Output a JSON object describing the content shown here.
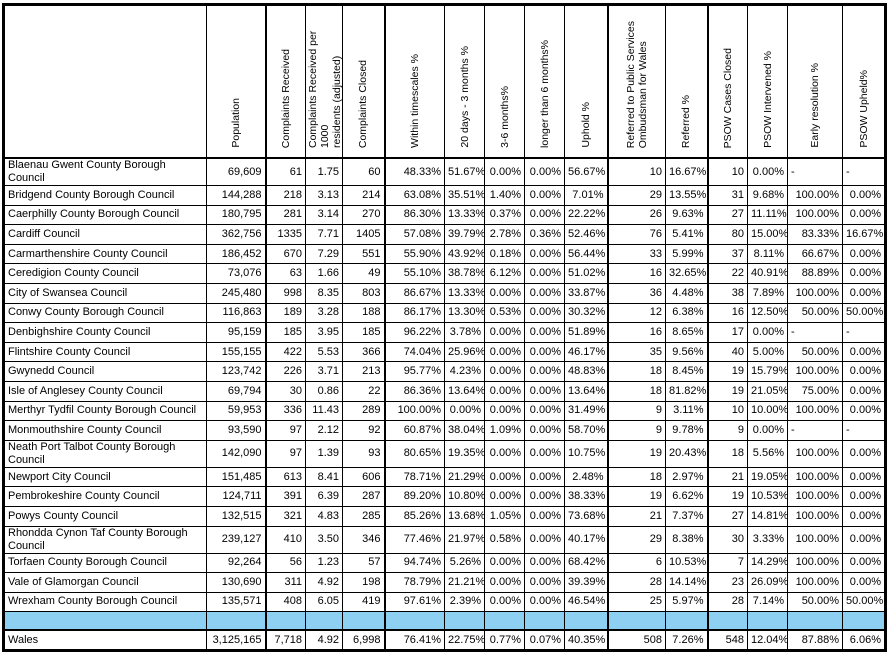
{
  "table": {
    "separator_row_color": "#8ED0F2",
    "columns": [
      {
        "label": ""
      },
      {
        "label": "Population"
      },
      {
        "label": "Complaints Received"
      },
      {
        "label": "Complaints Received per 1000\nresidents (adjusted)"
      },
      {
        "label": "Complaints Closed"
      },
      {
        "label": "Within timescales %"
      },
      {
        "label": "20 days - 3 months %"
      },
      {
        "label": "3-6 months%"
      },
      {
        "label": "longer than 6 months%"
      },
      {
        "label": "Uphold %"
      },
      {
        "label": "Referred to Public Services\nOmbudsman for Wales"
      },
      {
        "label": "Referred %"
      },
      {
        "label": "PSOW Cases Closed"
      },
      {
        "label": "PSOW Intervened %"
      },
      {
        "label": "Early resolution %"
      },
      {
        "label": "PSOW Upheld%"
      }
    ],
    "rows": [
      {
        "name": "Blaenau Gwent County Borough Council",
        "values": [
          "69,609",
          "61",
          "1.75",
          "60",
          "48.33%",
          "51.67%",
          "0.00%",
          "0.00%",
          "56.67%",
          "10",
          "16.67%",
          "10",
          "0.00%",
          "-",
          "-"
        ]
      },
      {
        "name": "Bridgend County Borough Council",
        "values": [
          "144,288",
          "218",
          "3.13",
          "214",
          "63.08%",
          "35.51%",
          "1.40%",
          "0.00%",
          "7.01%",
          "29",
          "13.55%",
          "31",
          "9.68%",
          "100.00%",
          "0.00%"
        ]
      },
      {
        "name": "Caerphilly County Borough Council",
        "values": [
          "180,795",
          "281",
          "3.14",
          "270",
          "86.30%",
          "13.33%",
          "0.37%",
          "0.00%",
          "22.22%",
          "26",
          "9.63%",
          "27",
          "11.11%",
          "100.00%",
          "0.00%"
        ]
      },
      {
        "name": "Cardiff Council",
        "values": [
          "362,756",
          "1335",
          "7.71",
          "1405",
          "57.08%",
          "39.79%",
          "2.78%",
          "0.36%",
          "52.46%",
          "76",
          "5.41%",
          "80",
          "15.00%",
          "83.33%",
          "16.67%"
        ]
      },
      {
        "name": "Carmarthenshire County Council",
        "values": [
          "186,452",
          "670",
          "7.29",
          "551",
          "55.90%",
          "43.92%",
          "0.18%",
          "0.00%",
          "56.44%",
          "33",
          "5.99%",
          "37",
          "8.11%",
          "66.67%",
          "0.00%"
        ]
      },
      {
        "name": "Ceredigion County Council",
        "values": [
          "73,076",
          "63",
          "1.66",
          "49",
          "55.10%",
          "38.78%",
          "6.12%",
          "0.00%",
          "51.02%",
          "16",
          "32.65%",
          "22",
          "40.91%",
          "88.89%",
          "0.00%"
        ]
      },
      {
        "name": "City of Swansea Council",
        "values": [
          "245,480",
          "998",
          "8.35",
          "803",
          "86.67%",
          "13.33%",
          "0.00%",
          "0.00%",
          "33.87%",
          "36",
          "4.48%",
          "38",
          "7.89%",
          "100.00%",
          "0.00%"
        ]
      },
      {
        "name": "Conwy County Borough Council",
        "values": [
          "116,863",
          "189",
          "3.28",
          "188",
          "86.17%",
          "13.30%",
          "0.53%",
          "0.00%",
          "30.32%",
          "12",
          "6.38%",
          "16",
          "12.50%",
          "50.00%",
          "50.00%"
        ]
      },
      {
        "name": "Denbighshire County Council",
        "values": [
          "95,159",
          "185",
          "3.95",
          "185",
          "96.22%",
          "3.78%",
          "0.00%",
          "0.00%",
          "51.89%",
          "16",
          "8.65%",
          "17",
          "0.00%",
          "-",
          "-"
        ]
      },
      {
        "name": "Flintshire County Council",
        "values": [
          "155,155",
          "422",
          "5.53",
          "366",
          "74.04%",
          "25.96%",
          "0.00%",
          "0.00%",
          "46.17%",
          "35",
          "9.56%",
          "40",
          "5.00%",
          "50.00%",
          "0.00%"
        ]
      },
      {
        "name": "Gwynedd Council",
        "values": [
          "123,742",
          "226",
          "3.71",
          "213",
          "95.77%",
          "4.23%",
          "0.00%",
          "0.00%",
          "48.83%",
          "18",
          "8.45%",
          "19",
          "15.79%",
          "100.00%",
          "0.00%"
        ]
      },
      {
        "name": "Isle of Anglesey County Council",
        "values": [
          "69,794",
          "30",
          "0.86",
          "22",
          "86.36%",
          "13.64%",
          "0.00%",
          "0.00%",
          "13.64%",
          "18",
          "81.82%",
          "19",
          "21.05%",
          "75.00%",
          "0.00%"
        ]
      },
      {
        "name": "Merthyr Tydfil County Borough Council",
        "values": [
          "59,953",
          "336",
          "11.43",
          "289",
          "100.00%",
          "0.00%",
          "0.00%",
          "0.00%",
          "31.49%",
          "9",
          "3.11%",
          "10",
          "10.00%",
          "100.00%",
          "0.00%"
        ]
      },
      {
        "name": "Monmouthshire County Council",
        "values": [
          "93,590",
          "97",
          "2.12",
          "92",
          "60.87%",
          "38.04%",
          "1.09%",
          "0.00%",
          "58.70%",
          "9",
          "9.78%",
          "9",
          "0.00%",
          "-",
          "-"
        ]
      },
      {
        "name": "Neath Port Talbot County Borough Council",
        "values": [
          "142,090",
          "97",
          "1.39",
          "93",
          "80.65%",
          "19.35%",
          "0.00%",
          "0.00%",
          "10.75%",
          "19",
          "20.43%",
          "18",
          "5.56%",
          "100.00%",
          "0.00%"
        ]
      },
      {
        "name": "Newport City Council",
        "values": [
          "151,485",
          "613",
          "8.41",
          "606",
          "78.71%",
          "21.29%",
          "0.00%",
          "0.00%",
          "2.48%",
          "18",
          "2.97%",
          "21",
          "19.05%",
          "100.00%",
          "0.00%"
        ]
      },
      {
        "name": "Pembrokeshire County Council",
        "values": [
          "124,711",
          "391",
          "6.39",
          "287",
          "89.20%",
          "10.80%",
          "0.00%",
          "0.00%",
          "38.33%",
          "19",
          "6.62%",
          "19",
          "10.53%",
          "100.00%",
          "0.00%"
        ]
      },
      {
        "name": "Powys County Council",
        "values": [
          "132,515",
          "321",
          "4.83",
          "285",
          "85.26%",
          "13.68%",
          "1.05%",
          "0.00%",
          "73.68%",
          "21",
          "7.37%",
          "27",
          "14.81%",
          "100.00%",
          "0.00%"
        ]
      },
      {
        "name": "Rhondda Cynon Taf County Borough Council",
        "values": [
          "239,127",
          "410",
          "3.50",
          "346",
          "77.46%",
          "21.97%",
          "0.58%",
          "0.00%",
          "40.17%",
          "29",
          "8.38%",
          "30",
          "3.33%",
          "100.00%",
          "0.00%"
        ]
      },
      {
        "name": "Torfaen County Borough Council",
        "values": [
          "92,264",
          "56",
          "1.23",
          "57",
          "94.74%",
          "5.26%",
          "0.00%",
          "0.00%",
          "68.42%",
          "6",
          "10.53%",
          "7",
          "14.29%",
          "100.00%",
          "0.00%"
        ]
      },
      {
        "name": "Vale of Glamorgan Council",
        "values": [
          "130,690",
          "311",
          "4.92",
          "198",
          "78.79%",
          "21.21%",
          "0.00%",
          "0.00%",
          "39.39%",
          "28",
          "14.14%",
          "23",
          "26.09%",
          "100.00%",
          "0.00%"
        ]
      },
      {
        "name": "Wrexham County Borough Council",
        "values": [
          "135,571",
          "408",
          "6.05",
          "419",
          "97.61%",
          "2.39%",
          "0.00%",
          "0.00%",
          "46.54%",
          "25",
          "5.97%",
          "28",
          "7.14%",
          "50.00%",
          "50.00%"
        ]
      }
    ],
    "total_row": {
      "name": "Wales",
      "values": [
        "3,125,165",
        "7,718",
        "4.92",
        "6,998",
        "76.41%",
        "22.75%",
        "0.77%",
        "0.07%",
        "40.35%",
        "508",
        "7.26%",
        "548",
        "12.04%",
        "87.88%",
        "6.06%"
      ]
    }
  }
}
